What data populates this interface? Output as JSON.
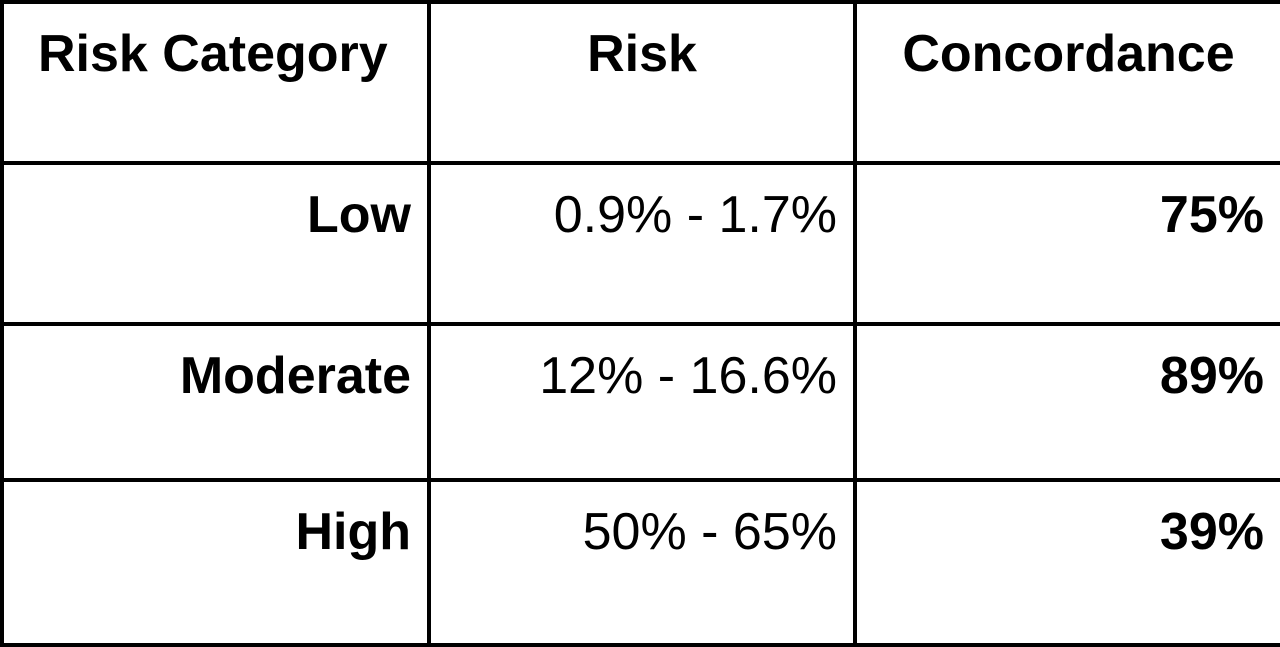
{
  "table": {
    "headers": [
      "Risk Category",
      "Risk",
      "Concordance"
    ],
    "rows": [
      {
        "category": "Low",
        "risk": "0.9% - 1.7%",
        "concordance": "75%"
      },
      {
        "category": "Moderate",
        "risk": "12% - 16.6%",
        "concordance": "89%"
      },
      {
        "category": "High",
        "risk": "50% - 65%",
        "concordance": "39%"
      }
    ]
  }
}
